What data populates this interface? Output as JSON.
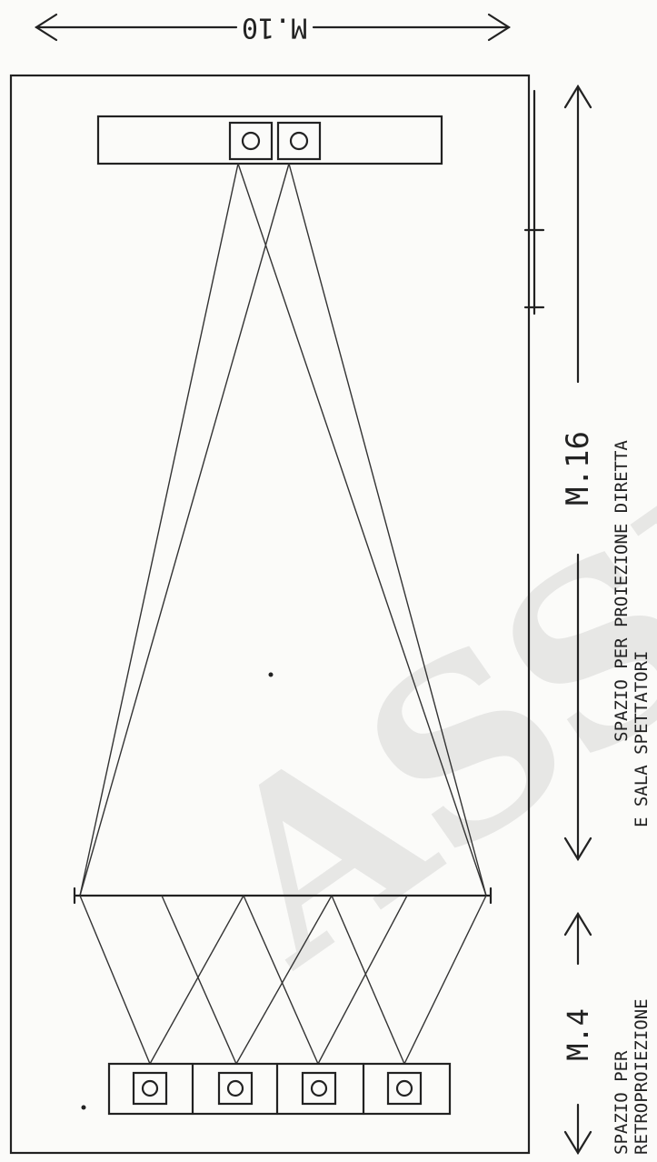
{
  "dimensions": {
    "top_width": "M.10",
    "hall_length": "M.16",
    "rear_length": "M.4"
  },
  "notes": {
    "direct_line1": "SPAZIO PER PROIEZIONE DIRETTA",
    "direct_line2": "E SALA SPETTATORI",
    "rear_line1": "SPAZIO PER",
    "rear_line2": "RETROPROIEZIONE"
  },
  "watermark": {
    "text": "ASSPR"
  },
  "colors": {
    "ink": "#222222",
    "paper": "#fbfbf9",
    "watermark": "#cfcfcf"
  }
}
